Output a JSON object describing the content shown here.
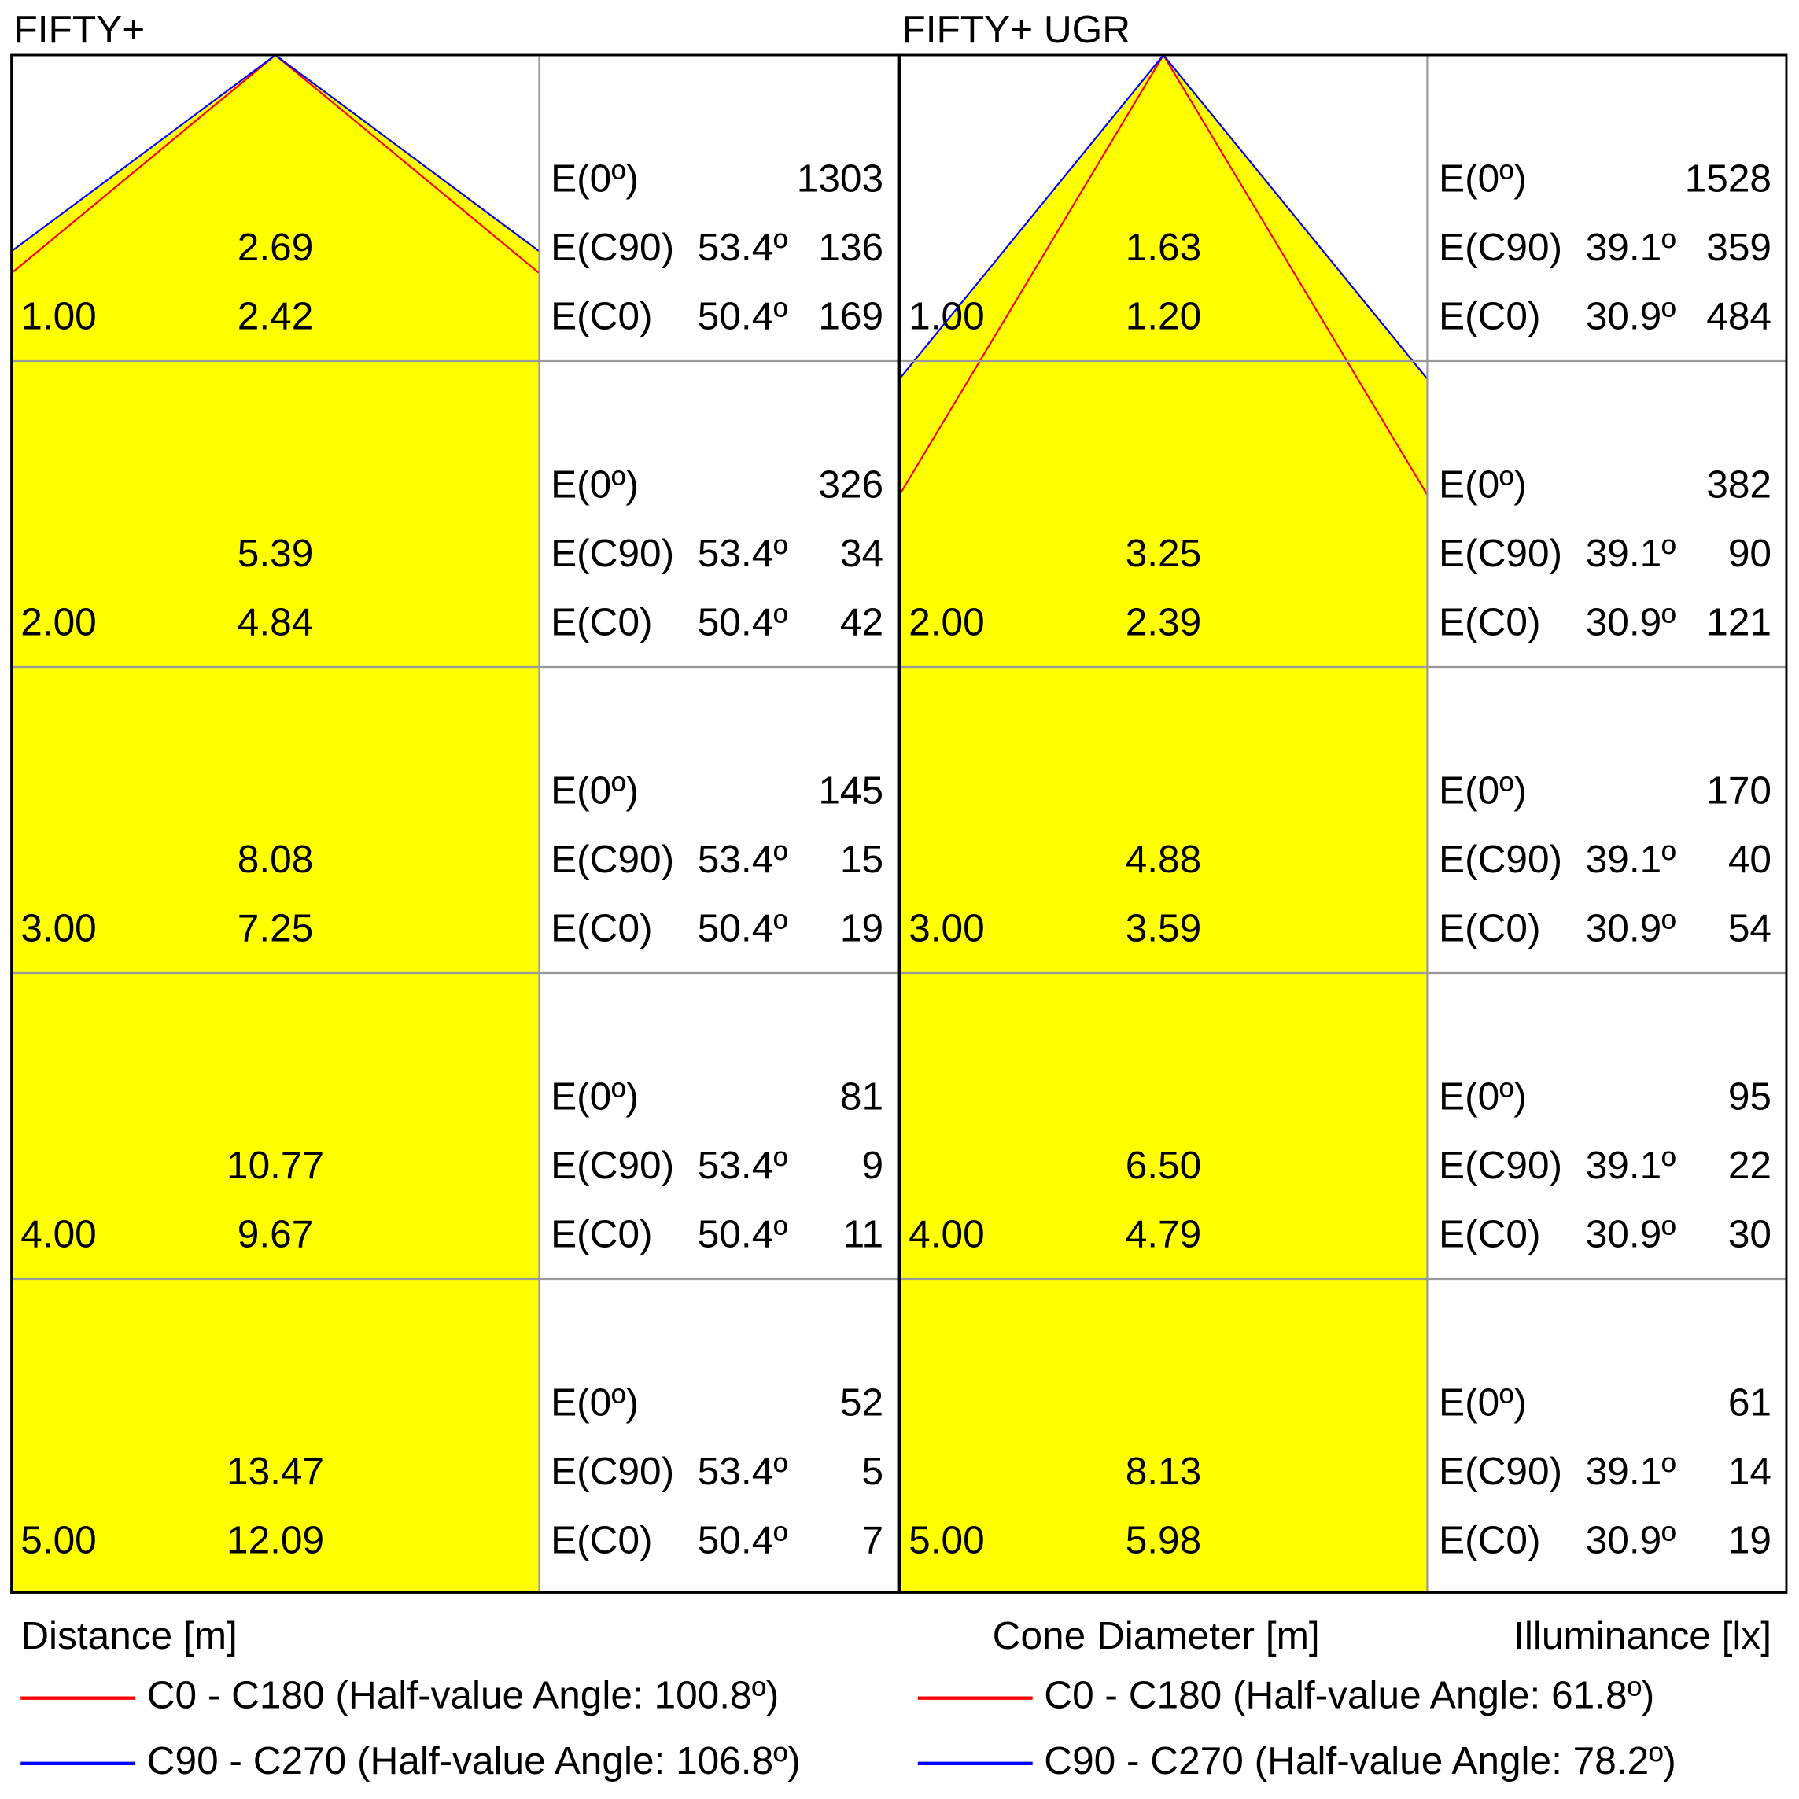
{
  "row_labels": [
    "E(0º)",
    "E(C90)",
    "E(C0)"
  ],
  "footer": {
    "distance": "Distance [m]",
    "diameter": "Cone Diameter [m]",
    "illuminance": "Illuminance [lx]"
  },
  "panels": [
    {
      "title": "FIFTY+",
      "c90_angle": "53.4º",
      "c0_angle": "50.4º",
      "legend": [
        {
          "name": "C0 - C180 (Half-value Angle: 100.8º)",
          "color": "#ff0000"
        },
        {
          "name": "C90 - C270 (Half-value Angle: 106.8º)",
          "color": "#0000ff"
        }
      ],
      "rows": [
        {
          "distance": "1.00",
          "c90_diameter": "2.69",
          "c0_diameter": "2.42",
          "e0": "1303",
          "e_c90": "136",
          "e_c0": "169"
        },
        {
          "distance": "2.00",
          "c90_diameter": "5.39",
          "c0_diameter": "4.84",
          "e0": "326",
          "e_c90": "34",
          "e_c0": "42"
        },
        {
          "distance": "3.00",
          "c90_diameter": "8.08",
          "c0_diameter": "7.25",
          "e0": "145",
          "e_c90": "15",
          "e_c0": "19"
        },
        {
          "distance": "4.00",
          "c90_diameter": "10.77",
          "c0_diameter": "9.67",
          "e0": "81",
          "e_c90": "9",
          "e_c0": "11"
        },
        {
          "distance": "5.00",
          "c90_diameter": "13.47",
          "c0_diameter": "12.09",
          "e0": "52",
          "e_c90": "5",
          "e_c0": "7"
        }
      ]
    },
    {
      "title": "FIFTY+ UGR",
      "c90_angle": "39.1º",
      "c0_angle": "30.9º",
      "legend": [
        {
          "name": "C0 - C180 (Half-value Angle: 61.8º)",
          "color": "#ff0000"
        },
        {
          "name": "C90 - C270 (Half-value Angle: 78.2º)",
          "color": "#0000ff"
        }
      ],
      "rows": [
        {
          "distance": "1.00",
          "c90_diameter": "1.63",
          "c0_diameter": "1.20",
          "e0": "1528",
          "e_c90": "359",
          "e_c0": "484"
        },
        {
          "distance": "2.00",
          "c90_diameter": "3.25",
          "c0_diameter": "2.39",
          "e0": "382",
          "e_c90": "90",
          "e_c0": "121"
        },
        {
          "distance": "3.00",
          "c90_diameter": "4.88",
          "c0_diameter": "3.59",
          "e0": "170",
          "e_c90": "40",
          "e_c0": "54"
        },
        {
          "distance": "4.00",
          "c90_diameter": "6.50",
          "c0_diameter": "4.79",
          "e0": "95",
          "e_c90": "22",
          "e_c0": "30"
        },
        {
          "distance": "5.00",
          "c90_diameter": "8.13",
          "c0_diameter": "5.98",
          "e0": "61",
          "e_c90": "14",
          "e_c0": "19"
        }
      ]
    }
  ]
}
